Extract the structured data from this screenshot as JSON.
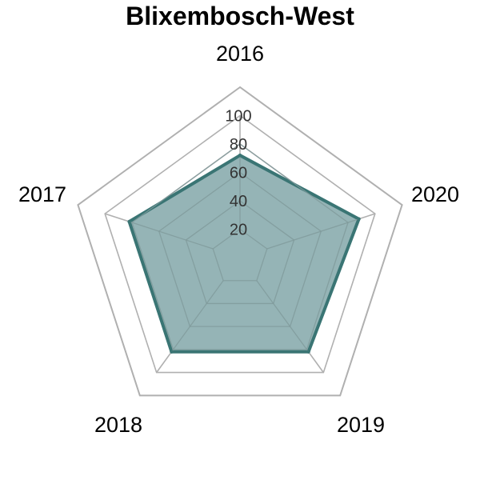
{
  "chart_data": {
    "type": "radar",
    "title": "Blixembosch-West",
    "categories": [
      "2016",
      "2017",
      "2018",
      "2019",
      "2020"
    ],
    "series": [
      {
        "values": [
          72,
          82,
          82,
          82,
          88
        ]
      }
    ],
    "rlim": [
      0,
      100
    ],
    "ticks": [
      "20",
      "40",
      "60",
      "80",
      "100"
    ],
    "outer_ring": 120,
    "colors": {
      "fill": "#95b4b6",
      "line": "#3a7574",
      "grid": "#b0b0b0",
      "inner_grid": "#7f9a9b"
    }
  }
}
